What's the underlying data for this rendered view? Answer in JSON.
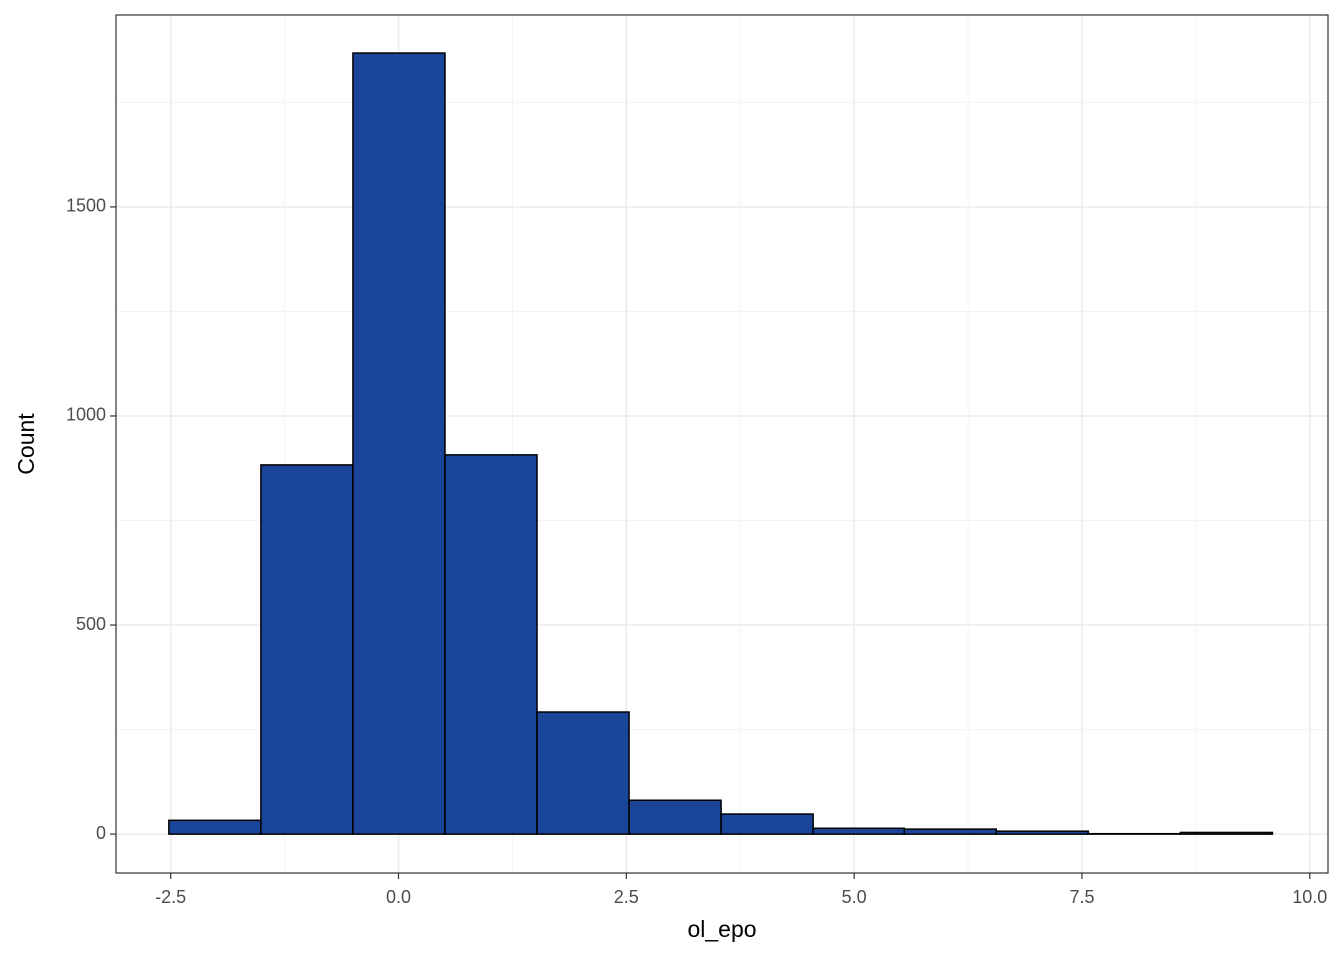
{
  "chart_data": {
    "type": "histogram",
    "x_label": "ol_epo",
    "y_label": "Count",
    "bins": [
      -2.52,
      -1.51,
      -0.5,
      0.51,
      1.52,
      2.53,
      3.54,
      4.55,
      5.55,
      6.56,
      7.57,
      8.58,
      9.59
    ],
    "values": [
      33,
      883,
      1868,
      907,
      292,
      81,
      48,
      14,
      12,
      7,
      1,
      4
    ],
    "color": "#1a4599",
    "edge_color": "#000000",
    "xlim": [
      -3.1,
      10.2
    ],
    "ylim": [
      -93,
      1959
    ],
    "xticks": [
      -2.5,
      {
        "value": 0,
        "label": "0.0"
      },
      2.5,
      {
        "value": 5,
        "label": "5.0"
      },
      7.5,
      {
        "value": 10,
        "label": "10.0"
      }
    ],
    "yticks": [
      0,
      500,
      1000,
      1500
    ],
    "x_minor_grid": [
      -1.25,
      1.25,
      3.75,
      6.25,
      8.75
    ],
    "y_minor_grid": [
      250,
      750,
      1250,
      1750
    ],
    "grid": true
  }
}
